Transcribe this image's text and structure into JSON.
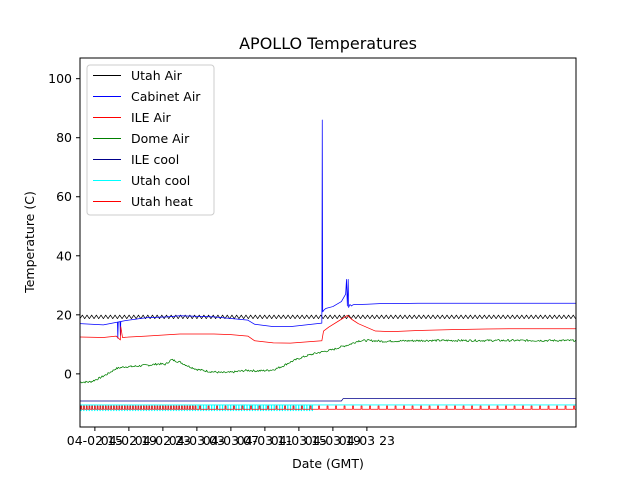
{
  "chart_data": {
    "type": "line",
    "title": "APOLLO Temperatures",
    "xlabel": "Date (GMT)",
    "ylabel": "Temperature (C)",
    "x_unit": "hours since 04-02 00 (GMT)",
    "xlim": [
      13.25,
      71.6
    ],
    "ylim": [
      -18,
      107
    ],
    "yticks": [
      0,
      20,
      40,
      60,
      80,
      100
    ],
    "xticks": [
      {
        "hour": 15,
        "label": "04-02 15"
      },
      {
        "hour": 19,
        "label": "04-02 19"
      },
      {
        "hour": 23,
        "label": "04-02 23"
      },
      {
        "hour": 27,
        "label": "04-03 03"
      },
      {
        "hour": 31,
        "label": "04-03 07"
      },
      {
        "hour": 35,
        "label": "04-03 11"
      },
      {
        "hour": 39,
        "label": "04-03 15"
      },
      {
        "hour": 43,
        "label": "04-03 19"
      },
      {
        "hour": 47,
        "label": "04-03 23"
      }
    ],
    "legend_position": "upper-left",
    "grid": false,
    "series": [
      {
        "name": "Utah Air",
        "color": "#000000",
        "kind": "oscillating",
        "base": 19.3,
        "amp": 0.6,
        "period": 0.55,
        "x": [
          13.25,
          71.6
        ],
        "y": [
          19.3,
          19.3
        ]
      },
      {
        "name": "Cabinet Air",
        "color": "#0000ff",
        "kind": "path",
        "x": [
          13.25,
          16.0,
          18.5,
          21.0,
          23.5,
          25.0,
          29.0,
          33.0,
          33.8,
          36.0,
          38.0,
          41.7,
          41.75,
          41.8,
          42.0,
          42.2,
          43.0,
          44.0,
          44.5,
          44.6,
          44.7,
          44.8,
          44.85,
          45.0,
          45.2,
          45.3,
          45.5,
          46.0,
          47.0,
          48.5,
          50.0,
          53.0,
          57.0,
          61.0,
          65.0,
          69.0,
          71.6
        ],
        "y": [
          17.0,
          16.6,
          18.0,
          19.0,
          19.3,
          19.7,
          19.3,
          18.2,
          16.8,
          16.0,
          16.0,
          17.2,
          86.0,
          21.0,
          21.8,
          22.2,
          22.8,
          24.5,
          27.0,
          32.0,
          23.0,
          32.0,
          22.5,
          23.5,
          23.0,
          23.3,
          23.5,
          23.5,
          23.6,
          23.8,
          23.8,
          23.9,
          23.9,
          23.9,
          23.9,
          23.9,
          23.9
        ],
        "dips": [
          {
            "x": 17.7,
            "y": 12.0
          },
          {
            "x": 18.0,
            "y": 13.0
          }
        ]
      },
      {
        "name": "ILE Air",
        "color": "#ff0000",
        "kind": "path",
        "x": [
          13.25,
          16.0,
          17.5,
          18.0,
          18.05,
          18.25,
          18.4,
          18.6,
          21.0,
          25.0,
          29.0,
          31.0,
          33.0,
          33.8,
          36.0,
          38.0,
          41.7,
          41.9,
          42.5,
          44.0,
          44.7,
          45.2,
          46.0,
          48.0,
          50.0,
          53.0,
          57.0,
          61.0,
          65.0,
          69.0,
          71.6
        ],
        "y": [
          12.5,
          12.3,
          12.8,
          11.5,
          16.0,
          12.3,
          12.3,
          12.4,
          12.8,
          13.5,
          13.5,
          13.3,
          12.8,
          11.2,
          10.5,
          10.4,
          11.2,
          14.5,
          15.8,
          18.5,
          19.8,
          18.5,
          17.0,
          14.5,
          14.3,
          14.7,
          15.0,
          15.2,
          15.3,
          15.3,
          15.3
        ]
      },
      {
        "name": "Dome Air",
        "color": "#008000",
        "kind": "noisy",
        "x": [
          13.25,
          14.5,
          15.5,
          16.5,
          17.5,
          18.5,
          19.5,
          20.5,
          21.5,
          22.5,
          23.3,
          24.0,
          25.0,
          26.0,
          27.0,
          28.5,
          30.0,
          31.0,
          32.0,
          33.0,
          34.0,
          35.0,
          36.0,
          37.0,
          38.0,
          39.0,
          40.0,
          41.0,
          42.0,
          43.0,
          44.0,
          45.0,
          46.0,
          47.0,
          48.0,
          49.0,
          50.0,
          52.0,
          54.0,
          56.0,
          58.0,
          60.0,
          62.0,
          64.0,
          66.0,
          68.0,
          70.0,
          71.6
        ],
        "y": [
          -2.8,
          -2.7,
          -1.5,
          0.0,
          1.8,
          2.4,
          2.5,
          2.8,
          3.0,
          3.4,
          3.2,
          4.8,
          4.0,
          2.6,
          1.5,
          0.8,
          0.4,
          0.5,
          0.9,
          1.2,
          1.0,
          1.1,
          1.4,
          2.5,
          4.0,
          5.2,
          6.2,
          7.0,
          7.6,
          8.2,
          9.2,
          10.0,
          11.2,
          11.3,
          11.2,
          11.0,
          11.1,
          11.2,
          11.3,
          11.3,
          11.3,
          11.3,
          11.3,
          11.3,
          11.3,
          11.3,
          11.3,
          11.3
        ]
      },
      {
        "name": "ILE cool",
        "color": "#00008b",
        "kind": "step",
        "x": [
          13.25,
          44.0,
          44.2,
          71.6
        ],
        "y": [
          -9.2,
          -9.2,
          -8.4,
          -8.4
        ]
      },
      {
        "name": "Utah cool",
        "color": "#00ffff",
        "kind": "step",
        "x": [
          13.25,
          71.6
        ],
        "y": [
          -10.5,
          -10.5
        ],
        "bottom": -12.5,
        "pulse_period": 0.32,
        "pulse_end": 40.5
      },
      {
        "name": "Utah heat",
        "color": "#ff0000",
        "kind": "pulses",
        "x": [
          13.25,
          71.6
        ],
        "y": [
          -12.0,
          -12.0
        ],
        "top": -10.9,
        "pulse_period": 0.32,
        "pulse_period_late": 1.0,
        "pulse_switch": 27.0
      }
    ]
  }
}
